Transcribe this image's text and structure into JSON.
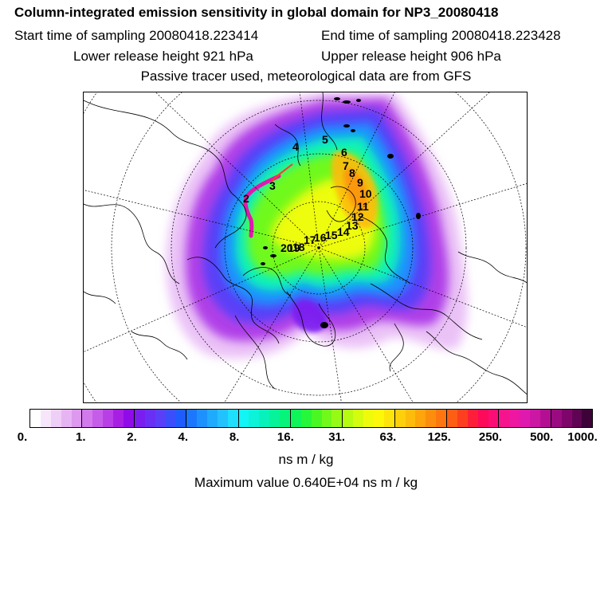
{
  "header": {
    "title": "Column-integrated emission sensitivity in global domain for NP3_20080418",
    "start_time": "Start time of sampling 20080418.223414",
    "end_time": "End time of sampling 20080418.223428",
    "lower_release": "Lower release height  921 hPa",
    "upper_release": "Upper release height  906 hPa",
    "tracer_note": "Passive tracer used, meteorological data are from GFS"
  },
  "map": {
    "projection": "north-polar-stereographic",
    "track_labels": [
      "2",
      "3",
      "4",
      "5",
      "6",
      "7",
      "8",
      "9",
      "10",
      "11",
      "12",
      "13",
      "14",
      "15",
      "16",
      "17",
      "18",
      "19",
      "20"
    ]
  },
  "colorbar": {
    "ticks": [
      "0.",
      "1.",
      "2.",
      "4.",
      "8.",
      "16.",
      "31.",
      "63.",
      "125.",
      "250.",
      "500.",
      "1000."
    ],
    "colors": [
      "#ffffff",
      "#f7e6fb",
      "#efcef7",
      "#e6b4f3",
      "#dd98ef",
      "#d27aec",
      "#c65de9",
      "#b83fe6",
      "#a81fe4",
      "#8f0be8",
      "#7a1ef0",
      "#6a2ff4",
      "#5a3ff8",
      "#3a4ffb",
      "#1f5cfd",
      "#1b78fe",
      "#1d92fe",
      "#20aafe",
      "#22c2fe",
      "#1fdffe",
      "#12f4f6",
      "#0cf3da",
      "#07f2bb",
      "#06f39a",
      "#07f47a",
      "#0ef55a",
      "#26f73a",
      "#49f823",
      "#70f91a",
      "#95fb16",
      "#b6fb12",
      "#d4fc0f",
      "#eefc0c",
      "#fdf70a",
      "#fde40a",
      "#fdd00b",
      "#fdbc0b",
      "#fda50b",
      "#fd8e0d",
      "#fd760f",
      "#fd5e14",
      "#fd3f1f",
      "#fd1f3a",
      "#fd0a5a",
      "#fa0e76",
      "#f5148d",
      "#ee17a1",
      "#e019ae",
      "#cc16a4",
      "#b40f93",
      "#9a0a80",
      "#7e066a",
      "#5f0452",
      "#3d0238"
    ],
    "units": "ns m / kg"
  },
  "max_value": "Maximum value  0.640E+04 ns m / kg"
}
